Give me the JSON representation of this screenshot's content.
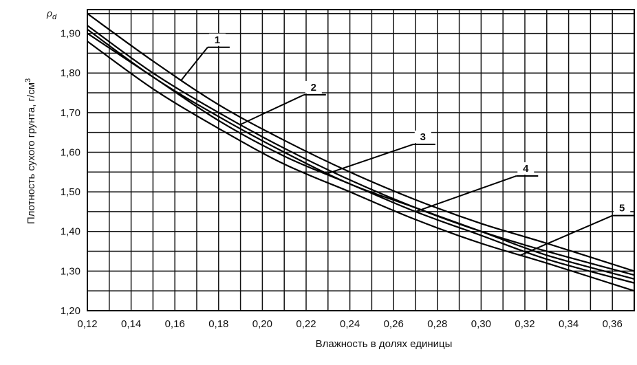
{
  "chart_data": {
    "type": "line",
    "title": "",
    "xlabel": "Влажность в долях единицы",
    "ylabel": "Плотность сухого грунта, г/см",
    "ylabel_superscript": "3",
    "ysymbol": "ρ",
    "ysymbol_sub": "d",
    "xlim": [
      0.12,
      0.37
    ],
    "ylim": [
      1.2,
      1.96
    ],
    "grid": true,
    "x_ticks": [
      {
        "v": 0.12,
        "label": "0,12"
      },
      {
        "v": 0.14,
        "label": "0,14"
      },
      {
        "v": 0.16,
        "label": "0,16"
      },
      {
        "v": 0.18,
        "label": "0,18"
      },
      {
        "v": 0.2,
        "label": "0,20"
      },
      {
        "v": 0.22,
        "label": "0,22"
      },
      {
        "v": 0.24,
        "label": "0,24"
      },
      {
        "v": 0.26,
        "label": "0,26"
      },
      {
        "v": 0.28,
        "label": "0,28"
      },
      {
        "v": 0.3,
        "label": "0,30"
      },
      {
        "v": 0.32,
        "label": "0,32"
      },
      {
        "v": 0.34,
        "label": "0,34"
      },
      {
        "v": 0.36,
        "label": "0,36"
      }
    ],
    "y_ticks": [
      {
        "v": 1.2,
        "label": "1,20"
      },
      {
        "v": 1.3,
        "label": "1,30"
      },
      {
        "v": 1.4,
        "label": "1,40"
      },
      {
        "v": 1.5,
        "label": "1,50"
      },
      {
        "v": 1.6,
        "label": "1,60"
      },
      {
        "v": 1.7,
        "label": "1,70"
      },
      {
        "v": 1.8,
        "label": "1,80"
      },
      {
        "v": 1.9,
        "label": "1,90"
      }
    ],
    "x_minor_step": 0.01,
    "y_minor_step": 0.05,
    "series": [
      {
        "name": "1",
        "x": [
          0.12,
          0.15,
          0.18,
          0.21,
          0.24,
          0.27,
          0.3,
          0.33,
          0.37
        ],
        "y": [
          1.95,
          1.83,
          1.72,
          1.63,
          1.55,
          1.48,
          1.42,
          1.37,
          1.3
        ]
      },
      {
        "name": "2",
        "x": [
          0.12,
          0.15,
          0.18,
          0.21,
          0.24,
          0.27,
          0.3,
          0.33,
          0.37
        ],
        "y": [
          1.92,
          1.8,
          1.7,
          1.61,
          1.53,
          1.46,
          1.4,
          1.35,
          1.29
        ]
      },
      {
        "name": "3",
        "x": [
          0.12,
          0.15,
          0.18,
          0.21,
          0.24,
          0.27,
          0.3,
          0.33,
          0.37
        ],
        "y": [
          1.91,
          1.79,
          1.69,
          1.6,
          1.52,
          1.46,
          1.4,
          1.34,
          1.28
        ]
      },
      {
        "name": "4",
        "x": [
          0.12,
          0.15,
          0.18,
          0.21,
          0.24,
          0.27,
          0.3,
          0.33,
          0.37
        ],
        "y": [
          1.9,
          1.79,
          1.68,
          1.59,
          1.52,
          1.45,
          1.39,
          1.33,
          1.27
        ]
      },
      {
        "name": "5",
        "x": [
          0.12,
          0.15,
          0.18,
          0.21,
          0.24,
          0.27,
          0.3,
          0.33,
          0.37
        ],
        "y": [
          1.88,
          1.76,
          1.66,
          1.57,
          1.5,
          1.43,
          1.37,
          1.32,
          1.25
        ]
      }
    ],
    "annotations": [
      {
        "label": "1",
        "series": "1",
        "x_at": 0.163,
        "label_x": 0.175,
        "label_y": 1.865
      },
      {
        "label": "2",
        "series": "2",
        "x_at": 0.19,
        "label_x": 0.219,
        "label_y": 1.745
      },
      {
        "label": "3",
        "series": "3",
        "x_at": 0.23,
        "label_x": 0.269,
        "label_y": 1.62
      },
      {
        "label": "4",
        "series": "4",
        "x_at": 0.27,
        "label_x": 0.316,
        "label_y": 1.54
      },
      {
        "label": "5",
        "series": "5",
        "x_at": 0.318,
        "label_x": 0.36,
        "label_y": 1.44
      }
    ]
  }
}
